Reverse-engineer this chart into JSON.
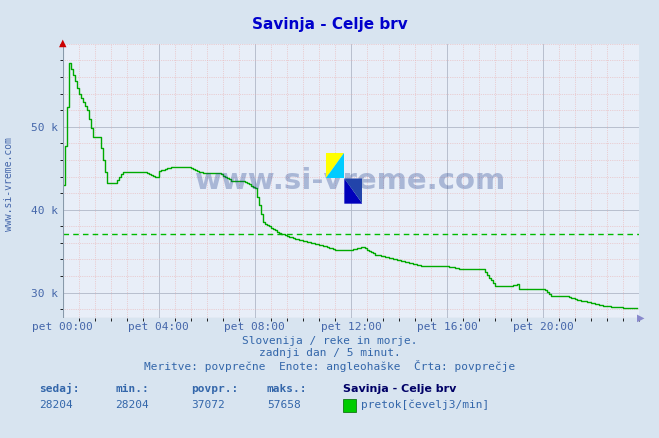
{
  "title": "Savinja - Celje brv",
  "title_color": "#0000cc",
  "bg_color": "#d8e4f0",
  "plot_bg_color": "#e8eef8",
  "grid_major_color": "#b0b8c8",
  "grid_minor_color": "#e8b0b0",
  "line_color": "#00aa00",
  "avg_line_color": "#00bb00",
  "avg_value": 37072,
  "ymin": 27000,
  "ymax": 60000,
  "yticks": [
    30000,
    40000,
    50000
  ],
  "ytick_labels": [
    "30 k",
    "40 k",
    "50 k"
  ],
  "tick_color": "#4466aa",
  "text1": "Slovenija / reke in morje.",
  "text2": "zadnji dan / 5 minut.",
  "text3": "Meritve: povprečne  Enote: angleоhaške  Črta: povprečje",
  "sedaj_label": "sedaj:",
  "min_label": "min.:",
  "povpr_label": "povpr.:",
  "maks_label": "maks.:",
  "sedaj_val": "28204",
  "min_val": "28204",
  "povpr_val": "37072",
  "maks_val": "57658",
  "legend_title": "Savinja - Celje brv",
  "legend_item": "pretok[čevelj3/min]",
  "watermark": "www.si-vreme.com",
  "xtick_labels": [
    "pet 00:00",
    "pet 04:00",
    "pet 08:00",
    "pet 12:00",
    "pet 16:00",
    "pet 20:00"
  ],
  "xtick_positions": [
    0,
    48,
    96,
    144,
    192,
    240
  ],
  "total_points": 288,
  "red_arrow_color": "#cc0000",
  "blue_arrow_color": "#8888cc",
  "axis_line_color": "#8899aa",
  "watermark_color": "#1a3a8a",
  "footer_color": "#3366aa",
  "label_bold_color": "#3366aa",
  "value_color": "#3366aa"
}
